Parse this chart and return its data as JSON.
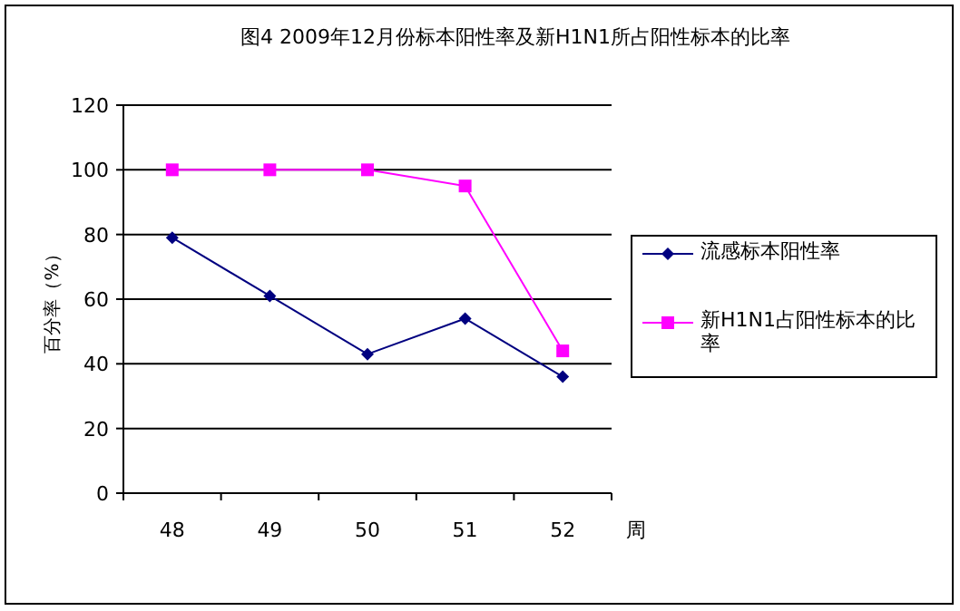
{
  "chart_data": {
    "type": "line",
    "title": "图4  2009年12月份标本阳性率及新H1N1所占阳性标本的比率",
    "xlabel": "周",
    "ylabel": "百分率（%）",
    "categories": [
      "48",
      "49",
      "50",
      "51",
      "52"
    ],
    "series": [
      {
        "name": "流感标本阳性率",
        "color": "#000080",
        "marker": "diamond",
        "values": [
          79,
          61,
          43,
          54,
          36
        ]
      },
      {
        "name": "新H1N1占阳性标本的比率",
        "color": "#ff00ff",
        "marker": "square",
        "values": [
          100,
          100,
          100,
          95,
          44
        ]
      }
    ],
    "ylim": [
      0,
      120
    ],
    "yticks": [
      0,
      20,
      40,
      60,
      80,
      100,
      120
    ],
    "grid": "y",
    "legend": "right",
    "line_style": "solid"
  }
}
